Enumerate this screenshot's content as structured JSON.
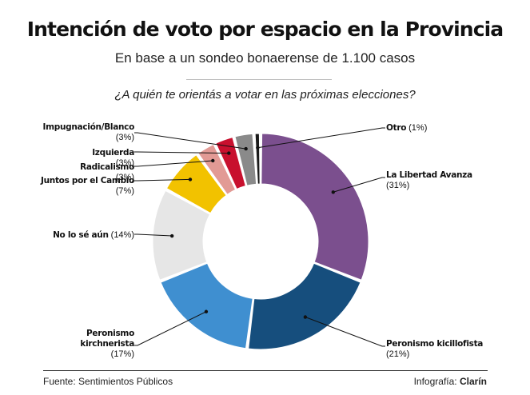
{
  "chart_data": {
    "type": "pie",
    "variant": "donut",
    "title": "Intención de voto por espacio en la Provincia",
    "subtitle": "En base a un sondeo bonaerense de 1.100 casos",
    "question": "¿A quién te orientás a votar en las próximas elecciones?",
    "slices": [
      {
        "id": "lla",
        "name": "La Libertad Avanza",
        "pct_label": "(31%)",
        "value": 31,
        "color": "#7b4f8e",
        "side": "right"
      },
      {
        "id": "kicillofista",
        "name": "Peronismo kicillofista",
        "pct_label": "(21%)",
        "value": 21,
        "color": "#164e7d",
        "side": "right"
      },
      {
        "id": "kirchnerista",
        "name": "Peronismo\nkirchnerista",
        "pct_label": "(17%)",
        "value": 17,
        "color": "#3f8fd0",
        "side": "left"
      },
      {
        "id": "nolose",
        "name": "No lo sé aún",
        "pct_label": "(14%)",
        "value": 14,
        "color": "#e6e6e6",
        "side": "left"
      },
      {
        "id": "jxc",
        "name": "Juntos por el Cambio",
        "pct_label": "(7%)",
        "value": 7,
        "color": "#f2c200",
        "side": "left"
      },
      {
        "id": "radicalismo",
        "name": "Radicalismo",
        "pct_label": "(3%)",
        "value": 3,
        "color": "#e29a95",
        "side": "left"
      },
      {
        "id": "izquierda",
        "name": "Izquierda",
        "pct_label": "(3%)",
        "value": 3,
        "color": "#c8102e",
        "side": "left"
      },
      {
        "id": "impugnacion",
        "name": "Impugnación/Blanco",
        "pct_label": "(3%)",
        "value": 3,
        "color": "#8a8a8a",
        "side": "left"
      },
      {
        "id": "otro",
        "name": "Otro",
        "pct_label": "(1%)",
        "value": 1,
        "color": "#1a1a1a",
        "side": "right"
      }
    ]
  },
  "footer": {
    "source": "Fuente: Sentimientos Públicos",
    "credit_prefix": "Infografía:",
    "credit_brand": "Clarín"
  }
}
